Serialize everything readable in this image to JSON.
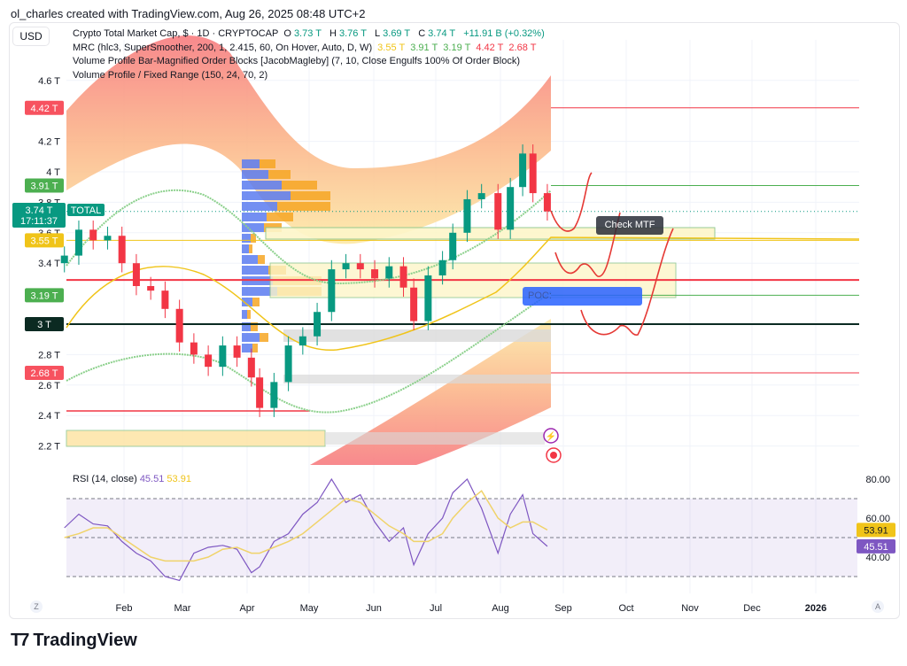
{
  "credit": "ol_charles created with TradingView.com, Aug 26, 2025 08:48 UTC+2",
  "currency": "USD",
  "legend": {
    "symbol": "Crypto Total Market Cap, $ · 1D · CRYPTOCAP",
    "open_label": "O",
    "open": "3.73 T",
    "high_label": "H",
    "high": "3.76 T",
    "low_label": "L",
    "low": "3.69 T",
    "close_label": "C",
    "close": "3.74 T",
    "change": "+11.91 B (+0.32%)",
    "mrc": "MRC (hlc3, SuperSmoother, 200, 1, 2.415, 60, On Hover, Auto, D, W)",
    "mrc_values": [
      "3.55 T",
      "3.91 T",
      "3.19 T",
      "4.42 T",
      "2.68 T"
    ],
    "ob": "Volume Profile Bar-Magnified Order Blocks [JacobMagleby] (7, 10, Close Engulfs 100% Of Order Block)",
    "vp": "Volume Profile / Fixed Range (150, 24, 70, 2)"
  },
  "badges": {
    "mrc_upper2": "4.42 T",
    "mrc_upper1": "3.91 T",
    "price": "3.74 T",
    "countdown": "17:11:37",
    "symbol_tag": "TOTAL",
    "mrc_mean": "3.55 T",
    "mrc_lower1": "3.19 T",
    "level_3t": "3 T",
    "mrc_lower2": "2.68 T"
  },
  "annotations": {
    "check_mtf": "Check MTF",
    "poc": "POC:"
  },
  "colors": {
    "up": "#089981",
    "down": "#f23645",
    "rsi": "#7e57c2",
    "rsi_ma": "#f0d36a",
    "mean": "#f0c419",
    "band_green": "#4caf50",
    "band_red": "#f23645"
  },
  "chart_data": [
    {
      "type": "candlestick",
      "title": "Crypto Total Market Cap, $ · 1D · CRYPTOCAP",
      "ylabel": "",
      "xlabel": "",
      "y_ticks": [
        "4.6 T",
        "4.2 T",
        "4 T",
        "3.8 T",
        "3.6 T",
        "3.4 T",
        "2.8 T",
        "2.6 T",
        "2.4 T",
        "2.2 T"
      ],
      "y_tick_values": [
        4.6,
        4.2,
        4.0,
        3.8,
        3.6,
        3.4,
        2.8,
        2.6,
        2.4,
        2.2
      ],
      "ylim": [
        2.15,
        4.85
      ],
      "dates": [
        "2025-01-03",
        "2025-01-10",
        "2025-01-17",
        "2025-01-24",
        "2025-01-31",
        "2025-02-07",
        "2025-02-14",
        "2025-02-21",
        "2025-02-28",
        "2025-03-07",
        "2025-03-14",
        "2025-03-21",
        "2025-03-28",
        "2025-04-04",
        "2025-04-08",
        "2025-04-15",
        "2025-04-22",
        "2025-04-29",
        "2025-05-06",
        "2025-05-13",
        "2025-05-20",
        "2025-05-27",
        "2025-06-03",
        "2025-06-10",
        "2025-06-17",
        "2025-06-22",
        "2025-06-29",
        "2025-07-06",
        "2025-07-11",
        "2025-07-18",
        "2025-07-25",
        "2025-08-02",
        "2025-08-08",
        "2025-08-14",
        "2025-08-19",
        "2025-08-26"
      ],
      "close": [
        3.45,
        3.62,
        3.55,
        3.58,
        3.4,
        3.25,
        3.22,
        3.1,
        2.88,
        2.8,
        2.72,
        2.86,
        2.78,
        2.65,
        2.45,
        2.62,
        2.86,
        2.92,
        3.08,
        3.36,
        3.4,
        3.36,
        3.3,
        3.38,
        3.24,
        3.02,
        3.32,
        3.42,
        3.6,
        3.82,
        3.86,
        3.62,
        3.9,
        4.12,
        3.86,
        3.74
      ],
      "levels": [
        {
          "value": 4.42,
          "color": "#f23645"
        },
        {
          "value": 3.91,
          "color": "#4caf50"
        },
        {
          "value": 3.55,
          "color": "#f0c419"
        },
        {
          "value": 3.29,
          "color": "#f23645"
        },
        {
          "value": 3.19,
          "color": "#4caf50"
        },
        {
          "value": 3.0,
          "color": "#0b2a22"
        },
        {
          "value": 2.68,
          "color": "#f23645"
        }
      ]
    },
    {
      "type": "line",
      "title": "RSI (14, close)",
      "series": [
        {
          "name": "45.51",
          "color": "#7e57c2",
          "values": [
            55,
            62,
            57,
            56,
            48,
            42,
            38,
            30,
            28,
            42,
            45,
            46,
            44,
            32,
            35,
            48,
            52,
            62,
            68,
            80,
            68,
            72,
            58,
            48,
            55,
            36,
            52,
            60,
            73,
            80,
            65,
            42,
            62,
            72,
            52,
            45.51
          ]
        },
        {
          "name": "53.91",
          "color": "#f0d36a",
          "values": [
            50,
            52,
            55,
            55,
            50,
            45,
            40,
            38,
            38,
            38,
            40,
            44,
            45,
            42,
            42,
            45,
            48,
            52,
            58,
            64,
            70,
            68,
            62,
            56,
            52,
            48,
            48,
            52,
            60,
            68,
            74,
            60,
            55,
            58,
            58,
            53.91
          ]
        }
      ],
      "y_ticks": [
        "80.00",
        "60.00",
        "40.00"
      ],
      "bands": [
        70,
        50,
        30
      ],
      "ylim": [
        20,
        85
      ],
      "x_ticks": [
        "Feb",
        "Mar",
        "Apr",
        "May",
        "Jun",
        "Jul",
        "Aug",
        "Sep",
        "Oct",
        "Nov",
        "Dec",
        "2026"
      ],
      "last_values": [
        "53.91",
        "45.51"
      ]
    }
  ],
  "axis_buttons": {
    "left": "Z",
    "right": "A"
  },
  "logo": "TradingView"
}
